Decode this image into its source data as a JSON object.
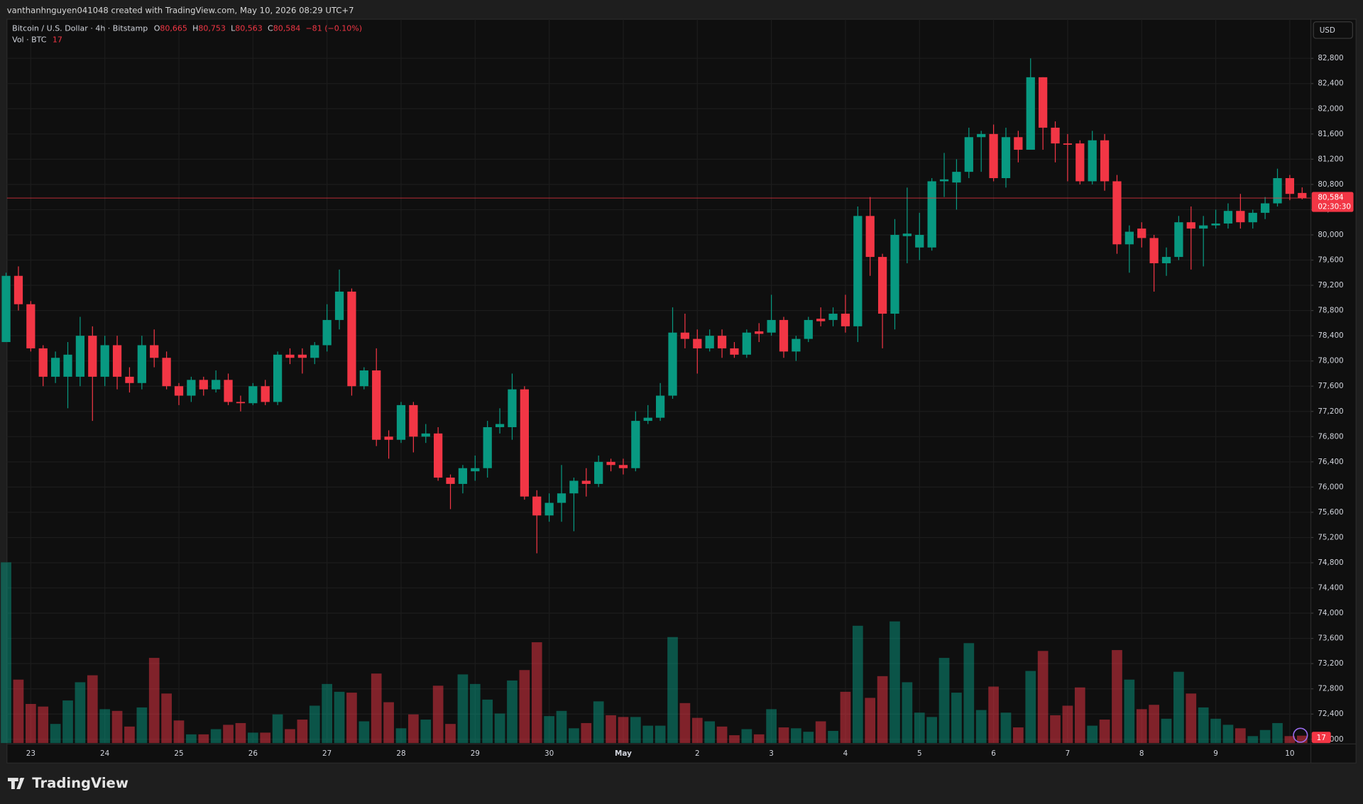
{
  "header": {
    "caption": "vanthanhnguyen041048 created with TradingView.com, May 10, 2026 08:29 UTC+7"
  },
  "footer": {
    "brand": "TradingView"
  },
  "chart_data": {
    "type": "candlestick",
    "title": "Bitcoin / U.S. Dollar · 4h · Bitstamp",
    "ohlc_legend": [
      {
        "key": "O",
        "value": "80,665"
      },
      {
        "key": "H",
        "value": "80,753"
      },
      {
        "key": "L",
        "value": "80,563"
      },
      {
        "key": "C",
        "value": "80,584"
      }
    ],
    "change_label": "−81 (−0.10%)",
    "volume_title": "Vol · BTC",
    "currency": "USD",
    "last_price_label": "80,584",
    "countdown": "02:30:30",
    "colors": {
      "up": "#089981",
      "down": "#f23645"
    },
    "grid": true,
    "ylim": [
      71940,
      83420
    ],
    "yticks": [
      {
        "value": 72000,
        "label": "72,000"
      },
      {
        "value": 72400,
        "label": "72,400"
      },
      {
        "value": 72800,
        "label": "72,800"
      },
      {
        "value": 73200,
        "label": "73,200"
      },
      {
        "value": 73600,
        "label": "73,600"
      },
      {
        "value": 74000,
        "label": "74,000"
      },
      {
        "value": 74400,
        "label": "74,400"
      },
      {
        "value": 74800,
        "label": "74,800"
      },
      {
        "value": 75200,
        "label": "75,200"
      },
      {
        "value": 75600,
        "label": "75,600"
      },
      {
        "value": 76000,
        "label": "76,000"
      },
      {
        "value": 76400,
        "label": "76,400"
      },
      {
        "value": 76800,
        "label": "76,800"
      },
      {
        "value": 77200,
        "label": "77,200"
      },
      {
        "value": 77600,
        "label": "77,600"
      },
      {
        "value": 78000,
        "label": "78,000"
      },
      {
        "value": 78400,
        "label": "78,400"
      },
      {
        "value": 78800,
        "label": "78,800"
      },
      {
        "value": 79200,
        "label": "79,200"
      },
      {
        "value": 79600,
        "label": "79,600"
      },
      {
        "value": 80000,
        "label": "80,000"
      },
      {
        "value": 80400,
        "label": "80,400"
      },
      {
        "value": 80800,
        "label": "80,800"
      },
      {
        "value": 81200,
        "label": "81,200"
      },
      {
        "value": 81600,
        "label": "81,600"
      },
      {
        "value": 82000,
        "label": "82,000"
      },
      {
        "value": 82400,
        "label": "82,400"
      },
      {
        "value": 82800,
        "label": "82,800"
      }
    ],
    "categories": [
      null,
      null,
      "23",
      null,
      null,
      null,
      null,
      null,
      "24",
      null,
      null,
      null,
      null,
      null,
      "25",
      null,
      null,
      null,
      null,
      null,
      "26",
      null,
      null,
      null,
      null,
      null,
      "27",
      null,
      null,
      null,
      null,
      null,
      "28",
      null,
      null,
      null,
      null,
      null,
      "29",
      null,
      null,
      null,
      null,
      null,
      "30",
      null,
      null,
      null,
      null,
      null,
      "May",
      null,
      null,
      null,
      null,
      null,
      "2",
      null,
      null,
      null,
      null,
      null,
      "3",
      null,
      null,
      null,
      null,
      null,
      "4",
      null,
      null,
      null,
      null,
      null,
      "5",
      null,
      null,
      null,
      null,
      null,
      "6",
      null,
      null,
      null,
      null,
      null,
      "7",
      null,
      null,
      null,
      null,
      null,
      "8",
      null,
      null,
      null,
      null,
      null,
      "9",
      null,
      null,
      null,
      null,
      null,
      "10",
      null
    ],
    "open": [
      78300,
      79350,
      78900,
      78200,
      77750,
      77750,
      77750,
      78400,
      77750,
      78250,
      77750,
      77650,
      78250,
      78050,
      77600,
      77450,
      77700,
      77550,
      77700,
      77350,
      77330,
      77600,
      77350,
      78100,
      78100,
      78050,
      78250,
      78650,
      79100,
      77600,
      77850,
      76800,
      76750,
      77300,
      76800,
      76850,
      76150,
      76050,
      76250,
      76300,
      76950,
      76950,
      77550,
      75850,
      75550,
      75750,
      75900,
      76100,
      76050,
      76400,
      76350,
      76300,
      77050,
      77100,
      77450,
      78450,
      78350,
      78200,
      78400,
      78200,
      78100,
      78470,
      78450,
      78650,
      78150,
      78350,
      78670,
      78650,
      78750,
      78550,
      80300,
      79650,
      78750,
      79980,
      79800,
      79800,
      80850,
      80830,
      81000,
      81550,
      81600,
      80900,
      81550,
      81350,
      82500,
      81700,
      81450,
      81450,
      80850,
      81500,
      80850,
      79850,
      80100,
      79950,
      79550,
      79650,
      80200,
      80100,
      80150,
      80180,
      80380,
      80200,
      80350,
      80500,
      80900,
      80665
    ],
    "high": [
      79400,
      79500,
      78950,
      78250,
      78150,
      78300,
      78700,
      78550,
      78400,
      78400,
      77900,
      78400,
      78500,
      78150,
      77650,
      77750,
      77750,
      77850,
      77800,
      77450,
      77650,
      77700,
      78150,
      78200,
      78200,
      78300,
      78900,
      79450,
      79150,
      77900,
      78200,
      76900,
      77350,
      77350,
      77000,
      76950,
      76200,
      76350,
      76500,
      77050,
      77250,
      77800,
      77600,
      75950,
      75900,
      76350,
      76150,
      76300,
      76500,
      76450,
      76450,
      77200,
      77300,
      77650,
      78850,
      78750,
      78500,
      78500,
      78500,
      78300,
      78500,
      78600,
      79050,
      78700,
      78400,
      78700,
      78850,
      78850,
      79050,
      80450,
      80600,
      79700,
      80250,
      80750,
      80350,
      80900,
      81300,
      81200,
      81700,
      81650,
      81750,
      81700,
      81650,
      82800,
      82500,
      81800,
      81600,
      81500,
      81650,
      81600,
      80950,
      80150,
      80200,
      80000,
      79800,
      80300,
      80450,
      80300,
      80400,
      80500,
      80650,
      80400,
      80600,
      81050,
      80950,
      80753
    ],
    "low": [
      78300,
      78800,
      78150,
      77600,
      77650,
      77250,
      77600,
      77050,
      77600,
      77550,
      77500,
      77550,
      77900,
      77550,
      77300,
      77350,
      77450,
      77500,
      77300,
      77200,
      77300,
      77300,
      77300,
      77950,
      77800,
      77950,
      78150,
      78500,
      77450,
      77550,
      76650,
      76450,
      76700,
      76550,
      76700,
      76100,
      75650,
      75900,
      76100,
      76150,
      76850,
      76750,
      75800,
      74950,
      75450,
      75450,
      75300,
      75850,
      76000,
      76250,
      76200,
      76250,
      77000,
      77050,
      77400,
      78200,
      77800,
      78150,
      78050,
      78050,
      78050,
      78300,
      78400,
      78050,
      78000,
      78300,
      78550,
      78550,
      78450,
      78300,
      79350,
      78200,
      78500,
      79550,
      79600,
      79750,
      80600,
      80400,
      80900,
      81000,
      80850,
      80750,
      81150,
      81350,
      81350,
      81150,
      80850,
      80800,
      80800,
      80700,
      79700,
      79400,
      79800,
      79100,
      79350,
      79600,
      79450,
      79500,
      80100,
      80100,
      80100,
      80100,
      80250,
      80450,
      80550,
      80563
    ],
    "close": [
      79350,
      78900,
      78200,
      77750,
      78050,
      78100,
      78400,
      77750,
      78250,
      77750,
      77650,
      78250,
      78050,
      77600,
      77450,
      77700,
      77550,
      77700,
      77350,
      77330,
      77600,
      77350,
      78100,
      78050,
      78050,
      78250,
      78650,
      79100,
      77600,
      77850,
      76750,
      76750,
      77300,
      76800,
      76850,
      76150,
      76050,
      76300,
      76300,
      76950,
      77000,
      77550,
      75850,
      75550,
      75750,
      75900,
      76100,
      76050,
      76400,
      76350,
      76300,
      77050,
      77100,
      77450,
      78450,
      78350,
      78200,
      78400,
      78200,
      78100,
      78450,
      78430,
      78650,
      78150,
      78350,
      78650,
      78630,
      78750,
      78550,
      80300,
      79650,
      78750,
      80000,
      80020,
      80000,
      80850,
      80880,
      81000,
      81550,
      81600,
      80900,
      81550,
      81350,
      82500,
      81700,
      81450,
      81430,
      80850,
      81500,
      80850,
      79850,
      80050,
      79950,
      79550,
      79650,
      80200,
      80100,
      80150,
      80180,
      80380,
      80200,
      80350,
      80500,
      80900,
      80650,
      80584
    ],
    "volume": [
      416,
      146,
      90,
      84,
      44,
      98,
      140,
      156,
      78,
      74,
      38,
      82,
      196,
      114,
      52,
      20,
      20,
      32,
      42,
      46,
      24,
      24,
      66,
      32,
      54,
      86,
      136,
      118,
      116,
      50,
      160,
      94,
      34,
      66,
      54,
      132,
      44,
      158,
      136,
      100,
      68,
      144,
      168,
      232,
      62,
      74,
      34,
      46,
      96,
      64,
      60,
      60,
      40,
      40,
      244,
      92,
      58,
      50,
      38,
      18,
      32,
      20,
      78,
      36,
      34,
      26,
      50,
      28,
      118,
      270,
      104,
      154,
      280,
      140,
      70,
      60,
      196,
      116,
      230,
      76,
      130,
      70,
      36,
      166,
      212,
      64,
      86,
      128,
      40,
      54,
      214,
      146,
      78,
      88,
      56,
      164,
      114,
      82,
      56,
      42,
      34,
      16,
      30,
      46,
      16,
      17
    ]
  }
}
